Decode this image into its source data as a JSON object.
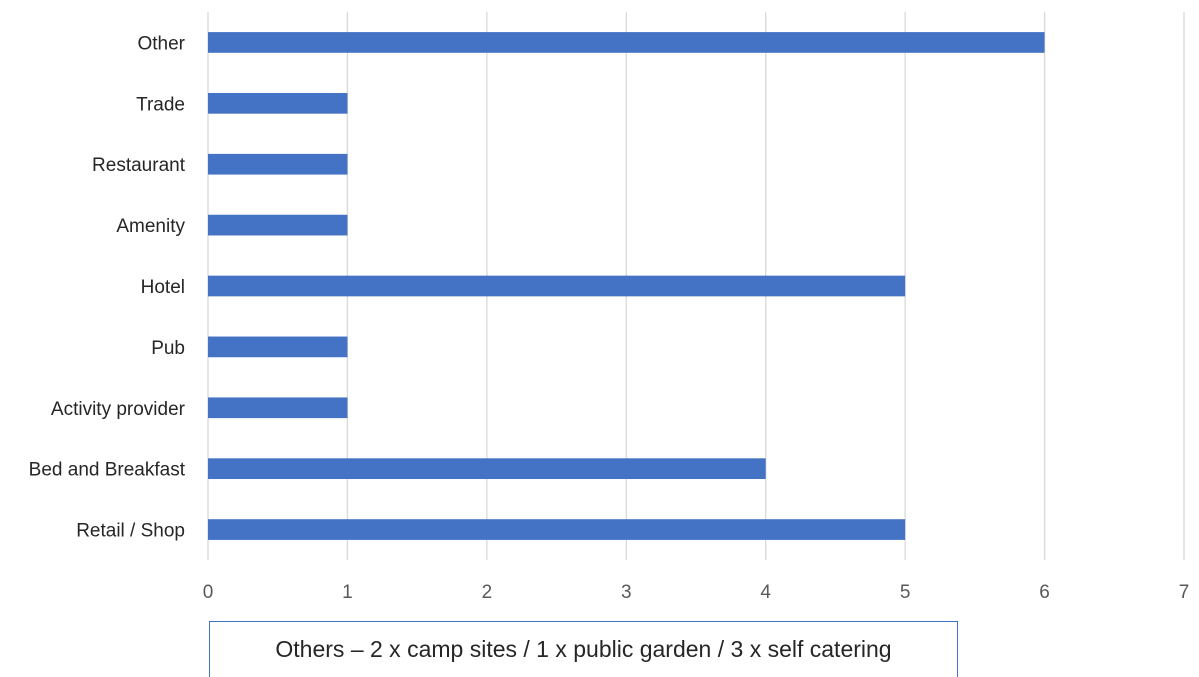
{
  "chart_data": {
    "type": "bar",
    "orientation": "horizontal",
    "categories": [
      "Retail / Shop",
      "Bed and Breakfast",
      "Activity provider",
      "Pub",
      "Hotel",
      "Amenity",
      "Restaurant",
      "Trade",
      "Other"
    ],
    "values": [
      5,
      4,
      1,
      1,
      5,
      1,
      1,
      1,
      6
    ],
    "xlim": [
      0,
      7
    ],
    "xticks": [
      0,
      1,
      2,
      3,
      4,
      5,
      6,
      7
    ],
    "grid": true,
    "bar_color": "#4472c4",
    "title": "",
    "xlabel": "",
    "ylabel": ""
  },
  "note": {
    "text": "Others – 2 x camp sites / 1 x public garden / 3 x self catering",
    "border_color": "#4472c4"
  }
}
